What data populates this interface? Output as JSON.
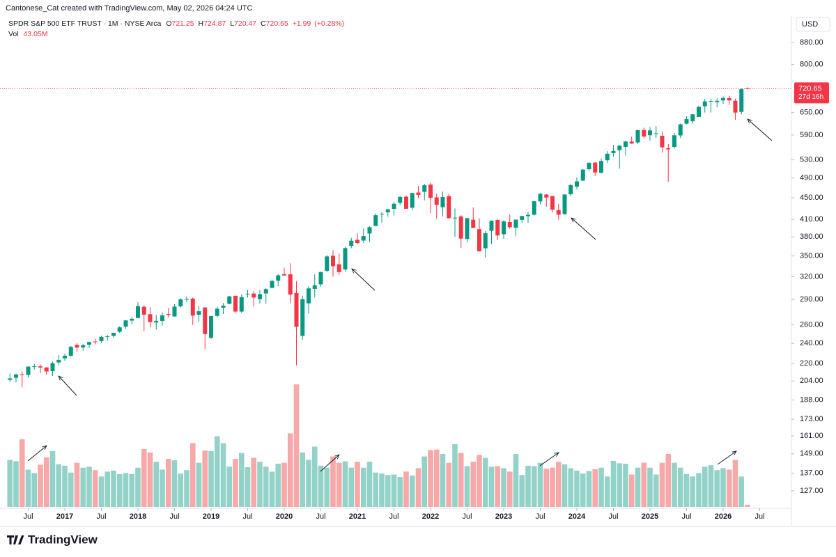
{
  "chart_data": {
    "type": "candlestick",
    "credit": "Cantonese_Cat created with TradingView.com, May 02, 2026 04:24 UTC",
    "title": "SPDR S&P 500 ETF TRUST · 1M · NYSE Arca",
    "header": {
      "open_label": "O",
      "open": 721.25,
      "high_label": "H",
      "high": 724.87,
      "low_label": "L",
      "low": 720.47,
      "close_label": "C",
      "close": 720.65,
      "change": {
        "value": 1.99,
        "label": "+1.99"
      },
      "change_pct": {
        "value": 0.28,
        "label": "(+0.28%)"
      },
      "vol_label": "Vol",
      "vol": {
        "value": 43.05,
        "label": "43.05M"
      }
    },
    "currency": "USD",
    "countdown": "27d 16h",
    "last_price": 720.65,
    "brand": "TradingView",
    "log_scale": true,
    "grid": false,
    "up_color": "#089981",
    "down_color": "#f23645",
    "up_volume_color": "#93d2c8",
    "down_volume_color": "#f7a8a8",
    "ylim": [
      118.5,
      937
    ],
    "volume_lim": [
      0,
      2700
    ],
    "yticks": [
      {
        "value": 127,
        "label": "127.00"
      },
      {
        "value": 137,
        "label": "137.00"
      },
      {
        "value": 149,
        "label": "149.00"
      },
      {
        "value": 161,
        "label": "161.00"
      },
      {
        "value": 173,
        "label": "173.00"
      },
      {
        "value": 188,
        "label": "188.00"
      },
      {
        "value": 204,
        "label": "204.00"
      },
      {
        "value": 220,
        "label": "220.00"
      },
      {
        "value": 240,
        "label": "240.00"
      },
      {
        "value": 260,
        "label": "260.00"
      },
      {
        "value": 290,
        "label": "290.00"
      },
      {
        "value": 320,
        "label": "320.00"
      },
      {
        "value": 350,
        "label": "350.00"
      },
      {
        "value": 380,
        "label": "380.00"
      },
      {
        "value": 410,
        "label": "410.00"
      },
      {
        "value": 450,
        "label": "450.00"
      },
      {
        "value": 490,
        "label": "490.00"
      },
      {
        "value": 530,
        "label": "530.00"
      },
      {
        "value": 590,
        "label": "590.00"
      },
      {
        "value": 650,
        "label": "650.00"
      },
      {
        "value": 800,
        "label": "800.00"
      },
      {
        "value": 880,
        "label": "880.00"
      }
    ],
    "xticks": [
      {
        "value": "2016-07",
        "label": "Jul"
      },
      {
        "value": "2017-01",
        "label": "2017"
      },
      {
        "value": "2017-07",
        "label": "Jul"
      },
      {
        "value": "2018-01",
        "label": "2018"
      },
      {
        "value": "2018-07",
        "label": "Jul"
      },
      {
        "value": "2019-01",
        "label": "2019"
      },
      {
        "value": "2019-07",
        "label": "Jul"
      },
      {
        "value": "2020-01",
        "label": "2020"
      },
      {
        "value": "2020-07",
        "label": "Jul"
      },
      {
        "value": "2021-01",
        "label": "2021"
      },
      {
        "value": "2021-07",
        "label": "Jul"
      },
      {
        "value": "2022-01",
        "label": "2022"
      },
      {
        "value": "2022-07",
        "label": "Jul"
      },
      {
        "value": "2023-01",
        "label": "2023"
      },
      {
        "value": "2023-07",
        "label": "Jul"
      },
      {
        "value": "2024-01",
        "label": "2024"
      },
      {
        "value": "2024-07",
        "label": "Jul"
      },
      {
        "value": "2025-01",
        "label": "2025"
      },
      {
        "value": "2025-07",
        "label": "Jul"
      },
      {
        "value": "2026-01",
        "label": "2026"
      },
      {
        "value": "2026-07",
        "label": "Jul"
      }
    ],
    "x": [
      "2016-04",
      "2016-05",
      "2016-06",
      "2016-07",
      "2016-08",
      "2016-09",
      "2016-10",
      "2016-11",
      "2016-12",
      "2017-01",
      "2017-02",
      "2017-03",
      "2017-04",
      "2017-05",
      "2017-06",
      "2017-07",
      "2017-08",
      "2017-09",
      "2017-10",
      "2017-11",
      "2017-12",
      "2018-01",
      "2018-02",
      "2018-03",
      "2018-04",
      "2018-05",
      "2018-06",
      "2018-07",
      "2018-08",
      "2018-09",
      "2018-10",
      "2018-11",
      "2018-12",
      "2019-01",
      "2019-02",
      "2019-03",
      "2019-04",
      "2019-05",
      "2019-06",
      "2019-07",
      "2019-08",
      "2019-09",
      "2019-10",
      "2019-11",
      "2019-12",
      "2020-01",
      "2020-02",
      "2020-03",
      "2020-04",
      "2020-05",
      "2020-06",
      "2020-07",
      "2020-08",
      "2020-09",
      "2020-10",
      "2020-11",
      "2020-12",
      "2021-01",
      "2021-02",
      "2021-03",
      "2021-04",
      "2021-05",
      "2021-06",
      "2021-07",
      "2021-08",
      "2021-09",
      "2021-10",
      "2021-11",
      "2021-12",
      "2022-01",
      "2022-02",
      "2022-03",
      "2022-04",
      "2022-05",
      "2022-06",
      "2022-07",
      "2022-08",
      "2022-09",
      "2022-10",
      "2022-11",
      "2022-12",
      "2023-01",
      "2023-02",
      "2023-03",
      "2023-04",
      "2023-05",
      "2023-06",
      "2023-07",
      "2023-08",
      "2023-09",
      "2023-10",
      "2023-11",
      "2023-12",
      "2024-01",
      "2024-02",
      "2024-03",
      "2024-04",
      "2024-05",
      "2024-06",
      "2024-07",
      "2024-08",
      "2024-09",
      "2024-10",
      "2024-11",
      "2024-12",
      "2025-01",
      "2025-02",
      "2025-03",
      "2025-04",
      "2025-05",
      "2025-06",
      "2025-07",
      "2025-08",
      "2025-09",
      "2025-10",
      "2025-11",
      "2025-12",
      "2026-01",
      "2026-02",
      "2026-03",
      "2026-04",
      "2026-05"
    ],
    "open": [
      205.0,
      206.9,
      210.0,
      209.5,
      217.2,
      217.4,
      216.3,
      212.9,
      221.0,
      225.0,
      227.5,
      238.4,
      235.8,
      238.7,
      241.9,
      242.4,
      247.5,
      247.9,
      252.3,
      258.0,
      264.8,
      267.8,
      281.1,
      272.2,
      262.6,
      264.4,
      272.4,
      269.5,
      281.6,
      289.8,
      291.2,
      271.6,
      280.3,
      245.9,
      270.2,
      280.0,
      284.7,
      294.7,
      275.3,
      296.7,
      297.6,
      290.6,
      297.7,
      304.9,
      314.6,
      323.5,
      323.4,
      298.2,
      247.9,
      285.3,
      303.6,
      309.6,
      328.3,
      350.4,
      337.7,
      330.2,
      365.6,
      375.3,
      374.1,
      385.6,
      398.4,
      419.4,
      422.6,
      428.9,
      440.3,
      452.1,
      430.98,
      460.3,
      461.6,
      476.3,
      450.7,
      432.0,
      453.3,
      412.1,
      415.2,
      376.6,
      409.2,
      392.9,
      361.8,
      390.1,
      408.8,
      384.4,
      405.2,
      395.4,
      408.9,
      415.5,
      418.1,
      442.9,
      456.3,
      453.2,
      426.6,
      419.2,
      457.0,
      472.2,
      484.6,
      508.98,
      523.8,
      501.4,
      529.0,
      545.6,
      552.6,
      560.5,
      573.4,
      571.3,
      602.97,
      589.4,
      592.7,
      588.1,
      557.5,
      560.4,
      588.9,
      619.5,
      626.1,
      638.0,
      668.0,
      682.0,
      680.0,
      685.0,
      692.0,
      684.0,
      652.0,
      721.25
    ],
    "high": [
      210.9,
      210.7,
      212.5,
      217.5,
      219.6,
      219.2,
      216.7,
      221.8,
      228.3,
      229.7,
      237.3,
      240.3,
      239.5,
      241.8,
      245.0,
      248.0,
      248.9,
      251.3,
      258.4,
      265.5,
      268.6,
      286.6,
      283.1,
      280.4,
      271.3,
      274.3,
      279.5,
      284.4,
      291.7,
      293.9,
      292.6,
      281.9,
      280.4,
      270.5,
      281.2,
      285.8,
      294.5,
      294.9,
      296.3,
      302.2,
      300.9,
      302.6,
      304.5,
      315.5,
      323.8,
      332.9,
      339.1,
      313.8,
      294.9,
      306.8,
      323.4,
      327.2,
      351.3,
      358.8,
      354.0,
      364.4,
      378.5,
      385.9,
      394.2,
      398.0,
      420.7,
      422.8,
      428.8,
      441.8,
      453.1,
      454.1,
      459.6,
      473.5,
      478.0,
      479.98,
      458.1,
      462.1,
      458.1,
      429.7,
      417.4,
      413.0,
      431.7,
      411.7,
      389.5,
      407.7,
      410.5,
      408.2,
      418.3,
      409.7,
      415.1,
      422.6,
      444.3,
      459.4,
      457.3,
      453.7,
      438.1,
      456.4,
      477.6,
      491.4,
      509.7,
      524.6,
      524.4,
      533.1,
      550.3,
      565.2,
      564.2,
      574.7,
      586.1,
      603.4,
      609.1,
      610.8,
      613.2,
      599.5,
      567.3,
      595.5,
      620.2,
      639.8,
      646.2,
      670.0,
      689.7,
      690.0,
      691.0,
      697.0,
      699.0,
      690.0,
      722.0,
      724.87
    ],
    "low": [
      203.1,
      202.8,
      198.7,
      207.0,
      214.3,
      211.2,
      209.5,
      208.4,
      218.6,
      222.7,
      226.8,
      231.6,
      232.5,
      235.4,
      239.0,
      240.5,
      242.8,
      246.0,
      251.1,
      255.4,
      260.8,
      267.4,
      252.9,
      256.9,
      254.7,
      259.1,
      268.5,
      269.5,
      280.2,
      286.7,
      259.9,
      263.1,
      233.8,
      244.6,
      268.3,
      272.4,
      284.3,
      274.0,
      273.6,
      292.5,
      281.7,
      284.8,
      284.8,
      304.7,
      307.1,
      321.3,
      285.5,
      218.3,
      243.9,
      272.9,
      292.6,
      306.6,
      326.4,
      319.8,
      322.6,
      327.2,
      362.0,
      368.3,
      370.4,
      371.9,
      398.2,
      404.0,
      414.7,
      416.6,
      436.1,
      428.8,
      426.4,
      448.9,
      445.0,
      420.8,
      410.6,
      415.1,
      411.2,
      380.5,
      362.2,
      371.0,
      395.0,
      357.0,
      348.1,
      368.8,
      374.8,
      376.5,
      393.6,
      380.7,
      403.8,
      403.7,
      416.8,
      437.1,
      433.0,
      422.3,
      409.2,
      418.7,
      453.0,
      466.4,
      483.8,
      504.9,
      493.9,
      499.6,
      522.6,
      537.5,
      510.3,
      539.4,
      567.9,
      567.9,
      580.9,
      575.4,
      582.4,
      546.9,
      481.8,
      556.0,
      582.0,
      617.9,
      620.0,
      637.0,
      650.0,
      650.0,
      665.0,
      675.0,
      672.0,
      630.0,
      645.0,
      720.47
    ],
    "close": [
      206.3,
      209.8,
      209.5,
      217.1,
      217.4,
      216.3,
      212.6,
      220.4,
      223.5,
      227.5,
      236.5,
      235.7,
      238.1,
      241.4,
      241.8,
      246.8,
      247.5,
      251.2,
      257.2,
      265.0,
      266.9,
      281.9,
      271.7,
      263.2,
      264.5,
      270.9,
      271.3,
      281.3,
      290.3,
      290.7,
      270.6,
      275.7,
      249.9,
      270.0,
      278.7,
      282.5,
      294.0,
      275.3,
      293.0,
      297.4,
      292.5,
      296.8,
      303.3,
      314.3,
      321.9,
      321.7,
      296.3,
      257.8,
      290.5,
      304.3,
      308.4,
      326.5,
      349.3,
      334.9,
      326.5,
      362.1,
      373.9,
      370.1,
      381.4,
      396.3,
      417.3,
      420.0,
      428.1,
      438.5,
      451.6,
      429.1,
      459.3,
      455.6,
      474.96,
      449.9,
      436.6,
      451.6,
      412.0,
      412.9,
      377.3,
      411.99,
      395.2,
      357.2,
      386.2,
      407.7,
      382.4,
      406.5,
      396.3,
      409.4,
      415.9,
      417.9,
      443.3,
      457.8,
      450.4,
      427.5,
      418.2,
      456.4,
      475.3,
      482.9,
      508.1,
      523.1,
      501.98,
      527.4,
      544.2,
      550.8,
      563.7,
      573.8,
      568.6,
      602.6,
      586.1,
      601.8,
      594.2,
      559.4,
      554.5,
      589.4,
      617.9,
      632.1,
      645.1,
      666.2,
      682.1,
      683.4,
      684.0,
      692.0,
      685.0,
      650.0,
      719.0,
      720.65
    ],
    "volume": [
      960,
      930,
      1380,
      760,
      690,
      860,
      1010,
      1140,
      870,
      840,
      700,
      900,
      800,
      820,
      750,
      620,
      720,
      740,
      670,
      690,
      670,
      800,
      1180,
      1110,
      920,
      760,
      980,
      950,
      680,
      750,
      1300,
      900,
      1150,
      1140,
      1440,
      1300,
      820,
      980,
      1100,
      810,
      1000,
      920,
      820,
      720,
      880,
      900,
      1500,
      2500,
      1110,
      960,
      1230,
      840,
      800,
      1030,
      900,
      930,
      800,
      920,
      800,
      920,
      700,
      680,
      650,
      660,
      610,
      720,
      640,
      790,
      1030,
      1160,
      1170,
      1080,
      900,
      1280,
      1100,
      830,
      920,
      1060,
      1000,
      820,
      830,
      790,
      720,
      1080,
      650,
      840,
      830,
      900,
      780,
      800,
      920,
      870,
      790,
      740,
      680,
      730,
      770,
      800,
      620,
      940,
      890,
      880,
      660,
      800,
      900,
      800,
      660,
      900,
      1080,
      900,
      800,
      670,
      620,
      690,
      820,
      850,
      750,
      790,
      760,
      960,
      620,
      43.05
    ]
  }
}
